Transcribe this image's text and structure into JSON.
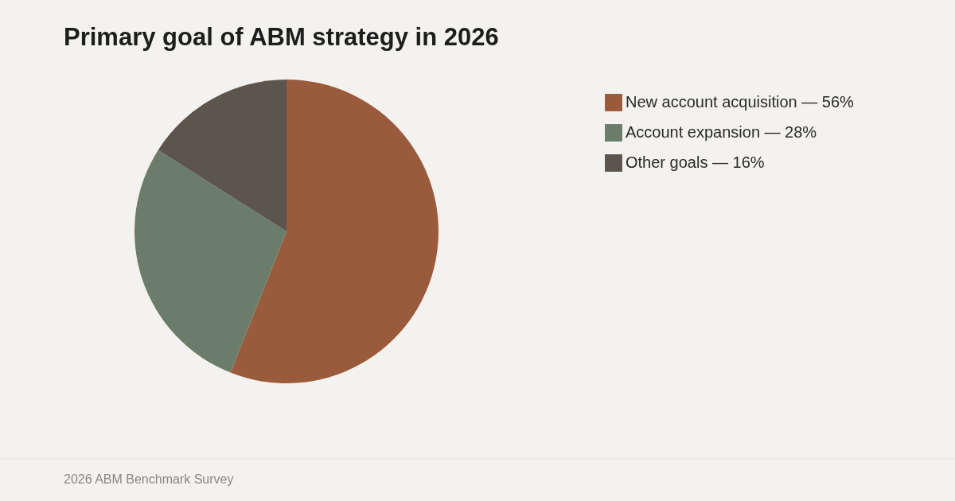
{
  "chart_data": {
    "type": "pie",
    "title": "Primary goal of ABM strategy in 2026",
    "categories": [
      "New account acquisition — 56%",
      "Account expansion — 28%",
      "Other goals — 16%"
    ],
    "values": [
      56,
      28,
      16
    ],
    "colors": [
      "#9a5a3c",
      "#6b7d6a",
      "#5c554d"
    ],
    "legend": "right",
    "annotations": [
      "2026 ABM Benchmark Survey"
    ]
  }
}
